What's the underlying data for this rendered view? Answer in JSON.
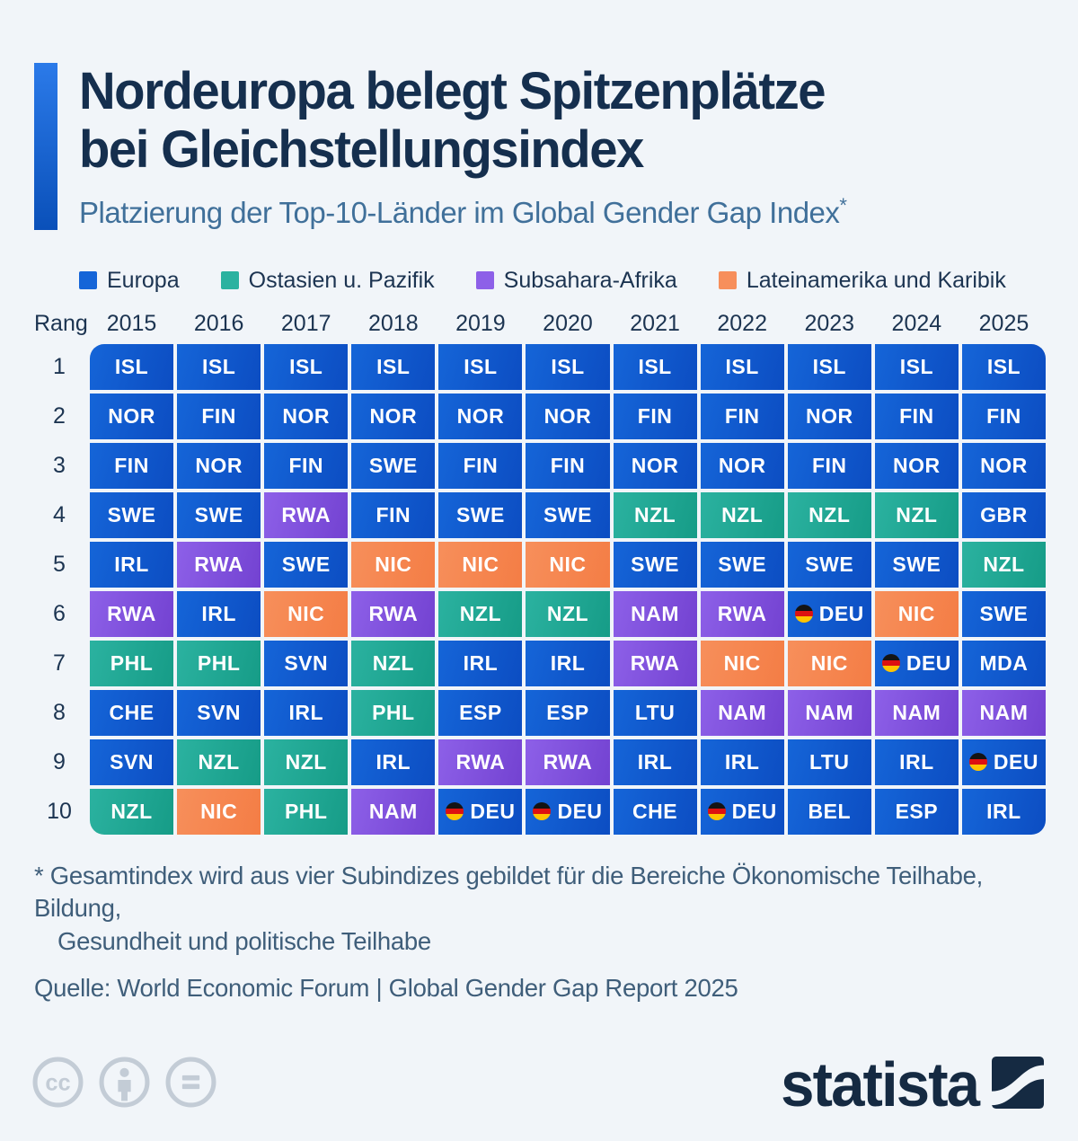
{
  "header": {
    "title_line1": "Nordeuropa belegt Spitzenplätze",
    "title_line2": "bei Gleichstellungsindex",
    "subtitle": "Platzierung der Top-10-Länder im Global Gender Gap Index",
    "note_marker": "*"
  },
  "chart_data": {
    "type": "table",
    "title": "Platzierung der Top-10-Länder im Global Gender Gap Index",
    "rank_header": "Rang",
    "columns": [
      "2015",
      "2016",
      "2017",
      "2018",
      "2019",
      "2020",
      "2021",
      "2022",
      "2023",
      "2024",
      "2025"
    ],
    "row_labels": [
      "1",
      "2",
      "3",
      "4",
      "5",
      "6",
      "7",
      "8",
      "9",
      "10"
    ],
    "rows": [
      [
        "ISL",
        "ISL",
        "ISL",
        "ISL",
        "ISL",
        "ISL",
        "ISL",
        "ISL",
        "ISL",
        "ISL",
        "ISL"
      ],
      [
        "NOR",
        "FIN",
        "NOR",
        "NOR",
        "NOR",
        "NOR",
        "FIN",
        "FIN",
        "NOR",
        "FIN",
        "FIN"
      ],
      [
        "FIN",
        "NOR",
        "FIN",
        "SWE",
        "FIN",
        "FIN",
        "NOR",
        "NOR",
        "FIN",
        "NOR",
        "NOR"
      ],
      [
        "SWE",
        "SWE",
        "RWA",
        "FIN",
        "SWE",
        "SWE",
        "NZL",
        "NZL",
        "NZL",
        "NZL",
        "GBR"
      ],
      [
        "IRL",
        "RWA",
        "SWE",
        "NIC",
        "NIC",
        "NIC",
        "SWE",
        "SWE",
        "SWE",
        "SWE",
        "NZL"
      ],
      [
        "RWA",
        "IRL",
        "NIC",
        "RWA",
        "NZL",
        "NZL",
        "NAM",
        "RWA",
        "DEU",
        "NIC",
        "SWE"
      ],
      [
        "PHL",
        "PHL",
        "SVN",
        "NZL",
        "IRL",
        "IRL",
        "RWA",
        "NIC",
        "NIC",
        "DEU",
        "MDA"
      ],
      [
        "CHE",
        "SVN",
        "IRL",
        "PHL",
        "ESP",
        "ESP",
        "LTU",
        "NAM",
        "NAM",
        "NAM",
        "NAM"
      ],
      [
        "SVN",
        "NZL",
        "NZL",
        "IRL",
        "RWA",
        "RWA",
        "IRL",
        "IRL",
        "LTU",
        "IRL",
        "DEU"
      ],
      [
        "NZL",
        "NIC",
        "PHL",
        "NAM",
        "DEU",
        "DEU",
        "CHE",
        "DEU",
        "BEL",
        "ESP",
        "IRL"
      ]
    ],
    "flagged_country": "DEU",
    "flag_icon_name": "germany-flag-icon",
    "legend_order": [
      "europe",
      "east_asia_pacific",
      "subsaharan_africa",
      "latin_america_caribbean"
    ],
    "regions": {
      "europe": {
        "label": "Europa",
        "color": "#1565d8",
        "color_dark": "#0c4dc2"
      },
      "east_asia_pacific": {
        "label": "Ostasien u. Pazifik",
        "color": "#2bb2a0",
        "color_dark": "#169c87"
      },
      "subsaharan_africa": {
        "label": "Subsahara-Afrika",
        "color": "#8d60e8",
        "color_dark": "#7342d1"
      },
      "latin_america_caribbean": {
        "label": "Lateinamerika und Karibik",
        "color": "#f78f5b",
        "color_dark": "#f47d45"
      }
    },
    "region_by_country": {
      "ISL": "europe",
      "NOR": "europe",
      "FIN": "europe",
      "SWE": "europe",
      "IRL": "europe",
      "CHE": "europe",
      "SVN": "europe",
      "ESP": "europe",
      "LTU": "europe",
      "DEU": "europe",
      "BEL": "europe",
      "GBR": "europe",
      "MDA": "europe",
      "NZL": "east_asia_pacific",
      "PHL": "east_asia_pacific",
      "RWA": "subsaharan_africa",
      "NAM": "subsaharan_africa",
      "NIC": "latin_america_caribbean"
    }
  },
  "footer": {
    "footnote_line1": "* Gesamtindex wird aus vier Subindizes gebildet für die Bereiche Ökonomische Teilhabe, Bildung,",
    "footnote_line2": "Gesundheit und politische Teilhabe",
    "source": "Quelle: World Economic Forum | Global Gender Gap Report 2025",
    "logo_text": "statista",
    "license_icons": [
      "cc-icon",
      "attribution-person-icon",
      "equals-no-derivatives-icon"
    ]
  },
  "colors": {
    "background": "#f1f5f9",
    "title": "#152f4e",
    "subtitle": "#40709a",
    "accent_bar_top": "#2b7ae9",
    "accent_bar_bottom": "#0a50b9",
    "footnote": "#3f5e7a",
    "license_gray": "#c3ccd6",
    "logo_navy": "#152a42"
  }
}
